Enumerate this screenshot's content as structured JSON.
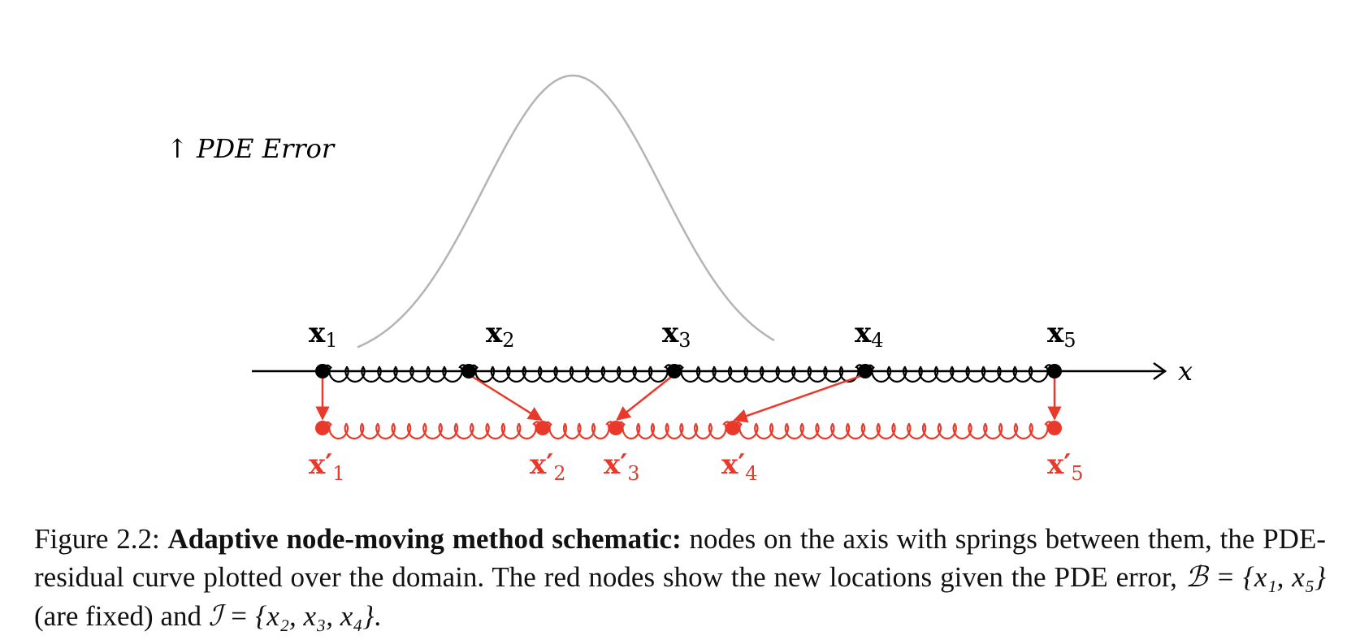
{
  "diagram": {
    "y_axis_label": "↑ PDE Error",
    "x_axis_label": "x",
    "colors": {
      "original": "#000000",
      "moved": "#e8392b",
      "error_curve": "#b4b4b4"
    },
    "nodes": [
      {
        "label": "x",
        "sub": "1"
      },
      {
        "label": "x",
        "sub": "2"
      },
      {
        "label": "x",
        "sub": "3"
      },
      {
        "label": "x",
        "sub": "4"
      },
      {
        "label": "x",
        "sub": "5"
      }
    ],
    "moved_nodes": [
      {
        "label": "x′",
        "sub": "1"
      },
      {
        "label": "x′",
        "sub": "2"
      },
      {
        "label": "x′",
        "sub": "3"
      },
      {
        "label": "x′",
        "sub": "4"
      },
      {
        "label": "x′",
        "sub": "5"
      }
    ]
  },
  "caption": {
    "prefix": "Figure 2.2: ",
    "bold": "Adaptive node-moving method schematic:",
    "text1": " nodes on the axis with springs between them, the PDE-residual curve plotted over the domain. The red nodes show the new locations given the PDE error, ",
    "b_set": "ℬ",
    "b_eq": " = {x₁, x₅}",
    "text2": " (are fixed) and ",
    "i_set": "ℐ",
    "i_eq": " = {x₂, x₃, x₄}",
    "text3": "."
  }
}
